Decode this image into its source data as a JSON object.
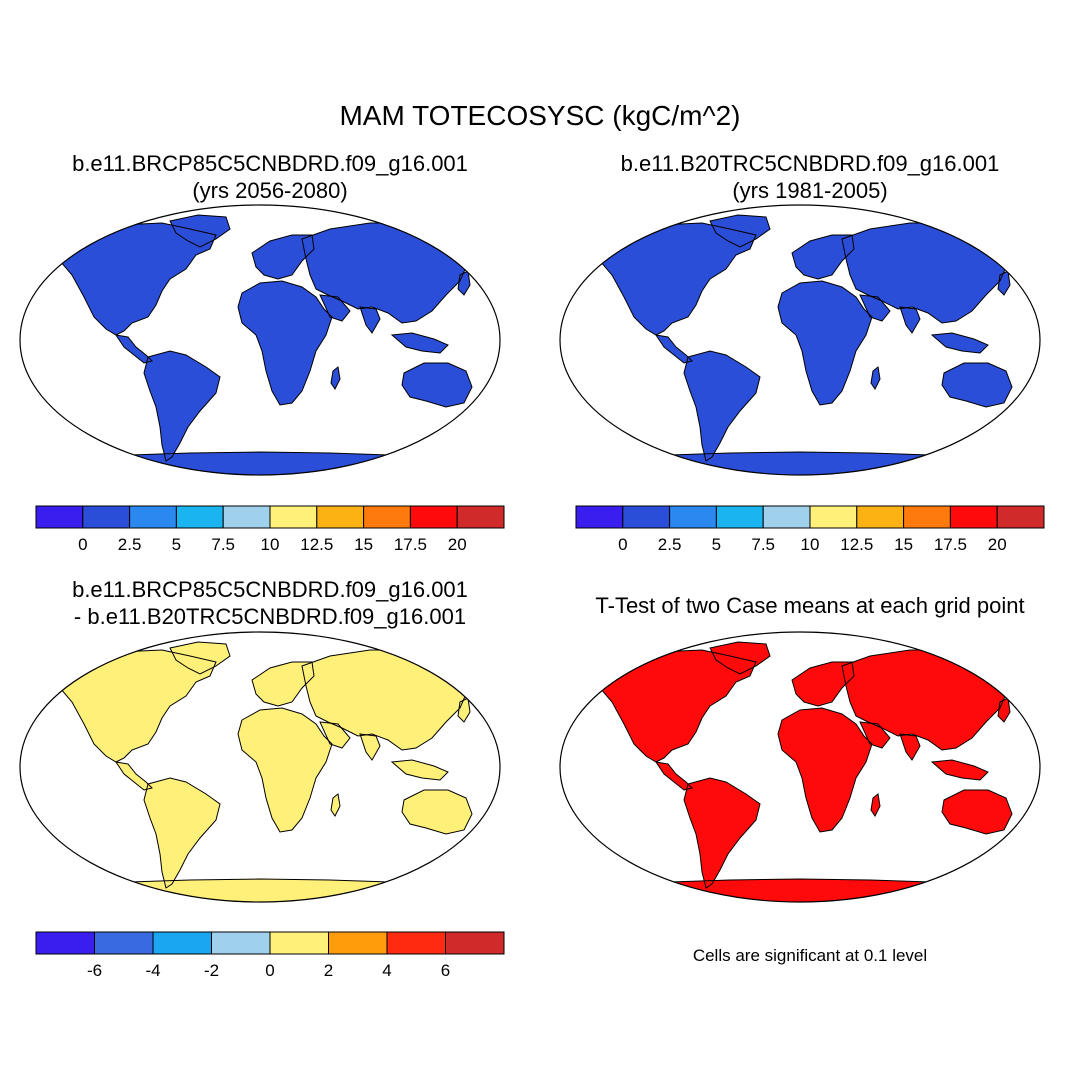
{
  "figure": {
    "title": "MAM TOTECOSYSC (kgC/m^2)",
    "panels": [
      {
        "id": "p1",
        "title_line1": "b.e11.BRCP85C5CNBDRD.f09_g16.001",
        "title_line2": "(yrs 2056-2080)"
      },
      {
        "id": "p2",
        "title_line1": "b.e11.B20TRC5CNBDRD.f09_g16.001",
        "title_line2": "(yrs 1981-2005)"
      },
      {
        "id": "p3",
        "title_line1": "b.e11.BRCP85C5CNBDRD.f09_g16.001",
        "title_line2": "- b.e11.B20TRC5CNBDRD.f09_g16.001"
      },
      {
        "id": "p4",
        "title_line1": "T-Test of two Case means at each grid point"
      }
    ],
    "significance_note": "Cells are significant at 0.1 level"
  },
  "colorbars": {
    "absolute": {
      "colors": [
        "#3a1ef0",
        "#2a4ed8",
        "#2a88ee",
        "#1ab4f0",
        "#9fd0ec",
        "#fff07a",
        "#fdb214",
        "#ff7a0c",
        "#ff0a0a",
        "#d02a2a"
      ],
      "ticks": [
        "0",
        "2.5",
        "5",
        "7.5",
        "10",
        "12.5",
        "15",
        "17.5",
        "20"
      ]
    },
    "difference": {
      "colors": [
        "#3a1ef0",
        "#3a6ae0",
        "#1aa6f0",
        "#9fd0ec",
        "#fff07a",
        "#ff9c0c",
        "#ff2a10",
        "#d02a2a"
      ],
      "ticks": [
        "-6",
        "-4",
        "-2",
        "0",
        "2",
        "4",
        "6"
      ]
    }
  },
  "map_colors": {
    "ocean": "#ffffff",
    "low": "#2a4ed8",
    "mid_light": "#1ab4f0",
    "high": "#d02a2a",
    "orange": "#ff7a0c",
    "diff_base": "#fff07a",
    "diff_light": "#9fd0ec",
    "diff_neg": "#3a6ae0",
    "ttest": "#ff0a0a"
  }
}
